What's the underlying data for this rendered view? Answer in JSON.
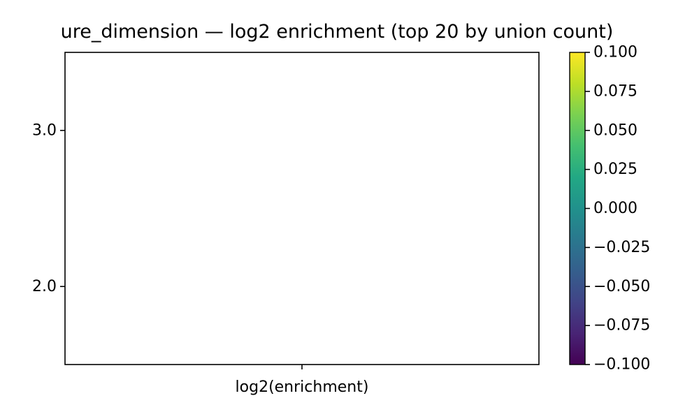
{
  "chart_data": {
    "type": "heatmap",
    "title": "ure_dimension — log2 enrichment (top 20 by union count)",
    "x_categories": [
      "log2(enrichment)"
    ],
    "y_ticks": [
      3.0,
      2.0
    ],
    "y_tick_labels": [
      "3.0",
      "2.0"
    ],
    "ylim": [
      1.5,
      3.5
    ],
    "values": [],
    "colorbar": {
      "colormap": "viridis",
      "colors": [
        "#440154",
        "#482475",
        "#414487",
        "#355f8d",
        "#2a788e",
        "#21918c",
        "#22a884",
        "#44bf70",
        "#7ad151",
        "#bddf26",
        "#fde725"
      ],
      "range": [
        -0.1,
        0.1
      ],
      "tick_values": [
        0.1,
        0.075,
        0.05,
        0.025,
        0.0,
        -0.025,
        -0.05,
        -0.075,
        -0.1
      ],
      "tick_labels": [
        "0.100",
        "0.075",
        "0.050",
        "0.025",
        "0.000",
        "−0.025",
        "−0.050",
        "−0.075",
        "−0.100"
      ]
    }
  }
}
